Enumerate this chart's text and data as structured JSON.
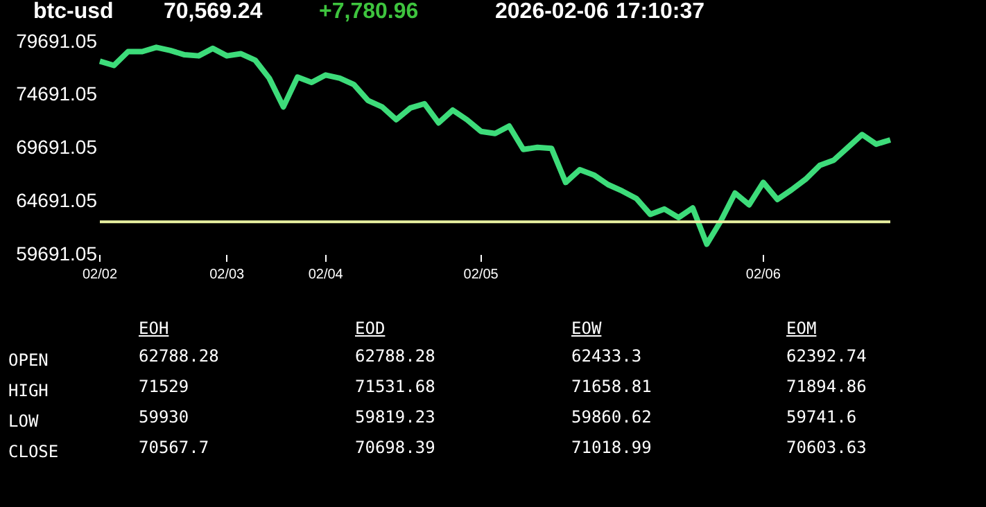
{
  "chart_data": [
    {
      "type": "line",
      "title": "btc-usd",
      "annotations": [
        "70,569.24",
        "+7,780.96",
        "2026-02-06",
        "17:10:37"
      ],
      "categories": [
        "02/02",
        null,
        null,
        null,
        null,
        null,
        null,
        null,
        null,
        "02/03",
        null,
        null,
        null,
        null,
        null,
        null,
        "02/04",
        null,
        null,
        null,
        null,
        null,
        null,
        null,
        null,
        null,
        null,
        "02/05",
        null,
        null,
        null,
        null,
        null,
        null,
        null,
        null,
        null,
        null,
        null,
        null,
        null,
        null,
        null,
        null,
        null,
        null,
        null,
        "02/06",
        null,
        null,
        null,
        null,
        null,
        null,
        null,
        null,
        null
      ],
      "series": [
        {
          "color": "#3ddc7a",
          "values": [
            77900,
            77500,
            78800,
            78800,
            79200,
            78900,
            78500,
            78400,
            79100,
            78400,
            78600,
            78000,
            76300,
            73600,
            76400,
            75900,
            76600,
            76300,
            75700,
            74200,
            73600,
            72400,
            73500,
            73900,
            72100,
            73300,
            72400,
            71300,
            71100,
            71800,
            69600,
            69800,
            69700,
            66500,
            67700,
            67200,
            66300,
            65700,
            65000,
            63500,
            64000,
            63200,
            64100,
            60700,
            62900,
            65500,
            64400,
            66500,
            64900,
            65800,
            66800,
            68100,
            68600,
            69800,
            71000,
            70100,
            70500
          ]
        }
      ],
      "ylim": [
        59691.05,
        79691.05
      ],
      "yticks": [
        59691.05,
        64691.05,
        69691.05,
        74691.05,
        79691.05
      ],
      "ref_lines": [
        {
          "axis": "y",
          "value": 62800,
          "color": "#e8f0a0"
        }
      ],
      "grid": false,
      "legend": false
    },
    {
      "type": "other",
      "annotations": [
        "EOH",
        "EOD",
        "EOW",
        "EOM",
        "OPEN",
        "62788.28",
        "62788.28",
        "62433.3",
        "62392.74",
        "HIGH",
        "71529",
        "71531.68",
        "71658.81",
        "71894.86",
        "LOW",
        "59930",
        "59819.23",
        "59860.62",
        "59741.6",
        "CLOSE",
        "70567.7",
        "70698.39",
        "71018.99",
        "70603.63"
      ]
    }
  ]
}
